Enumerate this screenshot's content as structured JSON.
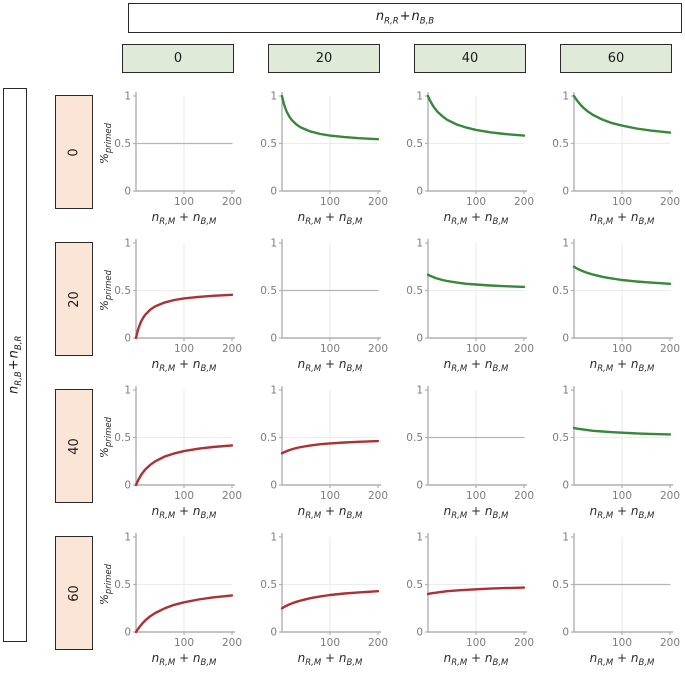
{
  "labels": {
    "col_header": {
      "b1": "n",
      "s1": "R,R",
      "op": "+",
      "b2": "n",
      "s2": "B,B"
    },
    "row_header": {
      "b1": "n",
      "s1": "R,B",
      "op": "+",
      "b2": "n",
      "s2": "B,R"
    },
    "x_axis": {
      "b1": "n",
      "s1": "R,M",
      "op": "+",
      "b2": "n",
      "s2": "B,M"
    },
    "y_axis": {
      "base": "%",
      "sub": "primed"
    }
  },
  "colors": {
    "green": "#37883a",
    "red": "#ab3234",
    "gray": "#b5b5b5",
    "axis": "#b0b0b0",
    "grid": "#ececec",
    "tick_text": "#7d7d7d",
    "label_text": "#2b2b2b",
    "col_box_fill": "#dfead9",
    "row_box_fill": "#fae5d6",
    "box_border": "#2a2a2a"
  },
  "chart_data": {
    "type": "line",
    "layout": "4x4 small multiples",
    "col_variable": "n_R,R + n_B,B",
    "row_variable": "n_R,B + n_B,R",
    "xlabel": "n_R,M + n_B,M",
    "ylabel": "%_primed",
    "col_values": [
      "0",
      "20",
      "40",
      "60"
    ],
    "row_values": [
      "0",
      "20",
      "40",
      "60"
    ],
    "xlim": [
      0,
      200
    ],
    "ylim": [
      0,
      1
    ],
    "x_ticks": [
      100,
      200
    ],
    "x_tick_labels": [
      "100",
      "200"
    ],
    "y_ticks": [
      0,
      0.5,
      1
    ],
    "y_tick_labels": [
      "0",
      "0.5",
      "1"
    ],
    "grid_x": [
      100
    ],
    "grid_y": [
      0.5
    ],
    "x": [
      0,
      2,
      4,
      7,
      10,
      15,
      20,
      30,
      40,
      60,
      80,
      100,
      130,
      160,
      200
    ],
    "cells": [
      {
        "row": 0,
        "col": 0,
        "row_value": 0,
        "col_value": 0,
        "color": "gray",
        "y": [
          0.5,
          0.5,
          0.5,
          0.5,
          0.5,
          0.5,
          0.5,
          0.5,
          0.5,
          0.5,
          0.5,
          0.5,
          0.5,
          0.5,
          0.5
        ]
      },
      {
        "row": 0,
        "col": 1,
        "row_value": 0,
        "col_value": 20,
        "color": "green",
        "y": [
          1.0,
          0.955,
          0.917,
          0.87,
          0.833,
          0.786,
          0.75,
          0.7,
          0.667,
          0.625,
          0.6,
          0.583,
          0.567,
          0.556,
          0.545
        ]
      },
      {
        "row": 0,
        "col": 2,
        "row_value": 0,
        "col_value": 40,
        "color": "green",
        "y": [
          1.0,
          0.976,
          0.955,
          0.926,
          0.9,
          0.864,
          0.833,
          0.786,
          0.75,
          0.7,
          0.667,
          0.643,
          0.618,
          0.6,
          0.583
        ]
      },
      {
        "row": 0,
        "col": 3,
        "row_value": 0,
        "col_value": 60,
        "color": "green",
        "y": [
          1.0,
          0.984,
          0.969,
          0.948,
          0.929,
          0.9,
          0.875,
          0.833,
          0.8,
          0.75,
          0.714,
          0.688,
          0.658,
          0.636,
          0.615
        ]
      },
      {
        "row": 1,
        "col": 0,
        "row_value": 20,
        "col_value": 0,
        "color": "red",
        "y": [
          0.0,
          0.045,
          0.083,
          0.13,
          0.167,
          0.214,
          0.25,
          0.3,
          0.333,
          0.375,
          0.4,
          0.417,
          0.433,
          0.444,
          0.455
        ]
      },
      {
        "row": 1,
        "col": 1,
        "row_value": 20,
        "col_value": 20,
        "color": "gray",
        "y": [
          0.5,
          0.5,
          0.5,
          0.5,
          0.5,
          0.5,
          0.5,
          0.5,
          0.5,
          0.5,
          0.5,
          0.5,
          0.5,
          0.5,
          0.5
        ]
      },
      {
        "row": 1,
        "col": 2,
        "row_value": 20,
        "col_value": 40,
        "color": "green",
        "y": [
          0.667,
          0.661,
          0.656,
          0.649,
          0.643,
          0.633,
          0.625,
          0.611,
          0.6,
          0.583,
          0.571,
          0.563,
          0.553,
          0.545,
          0.538
        ]
      },
      {
        "row": 1,
        "col": 3,
        "row_value": 20,
        "col_value": 60,
        "color": "green",
        "y": [
          0.75,
          0.744,
          0.738,
          0.73,
          0.722,
          0.711,
          0.7,
          0.682,
          0.667,
          0.643,
          0.625,
          0.611,
          0.595,
          0.583,
          0.571
        ]
      },
      {
        "row": 2,
        "col": 0,
        "row_value": 40,
        "col_value": 0,
        "color": "red",
        "y": [
          0.0,
          0.024,
          0.045,
          0.074,
          0.1,
          0.136,
          0.167,
          0.214,
          0.25,
          0.3,
          0.333,
          0.357,
          0.382,
          0.4,
          0.417
        ]
      },
      {
        "row": 2,
        "col": 1,
        "row_value": 40,
        "col_value": 20,
        "color": "red",
        "y": [
          0.333,
          0.339,
          0.344,
          0.351,
          0.357,
          0.367,
          0.375,
          0.389,
          0.4,
          0.417,
          0.429,
          0.438,
          0.447,
          0.455,
          0.462
        ]
      },
      {
        "row": 2,
        "col": 2,
        "row_value": 40,
        "col_value": 40,
        "color": "gray",
        "y": [
          0.5,
          0.5,
          0.5,
          0.5,
          0.5,
          0.5,
          0.5,
          0.5,
          0.5,
          0.5,
          0.5,
          0.5,
          0.5,
          0.5,
          0.5
        ]
      },
      {
        "row": 2,
        "col": 3,
        "row_value": 40,
        "col_value": 60,
        "color": "green",
        "y": [
          0.6,
          0.598,
          0.596,
          0.593,
          0.591,
          0.587,
          0.583,
          0.577,
          0.571,
          0.563,
          0.556,
          0.55,
          0.543,
          0.538,
          0.533
        ]
      },
      {
        "row": 3,
        "col": 0,
        "row_value": 60,
        "col_value": 0,
        "color": "red",
        "y": [
          0.0,
          0.016,
          0.031,
          0.052,
          0.071,
          0.1,
          0.125,
          0.167,
          0.2,
          0.25,
          0.286,
          0.313,
          0.342,
          0.364,
          0.385
        ]
      },
      {
        "row": 3,
        "col": 1,
        "row_value": 60,
        "col_value": 20,
        "color": "red",
        "y": [
          0.25,
          0.256,
          0.262,
          0.27,
          0.278,
          0.289,
          0.3,
          0.318,
          0.333,
          0.357,
          0.375,
          0.389,
          0.405,
          0.417,
          0.429
        ]
      },
      {
        "row": 3,
        "col": 2,
        "row_value": 60,
        "col_value": 40,
        "color": "red",
        "y": [
          0.4,
          0.402,
          0.404,
          0.407,
          0.409,
          0.413,
          0.417,
          0.423,
          0.429,
          0.438,
          0.444,
          0.45,
          0.457,
          0.462,
          0.467
        ]
      },
      {
        "row": 3,
        "col": 3,
        "row_value": 60,
        "col_value": 60,
        "color": "gray",
        "y": [
          0.5,
          0.5,
          0.5,
          0.5,
          0.5,
          0.5,
          0.5,
          0.5,
          0.5,
          0.5,
          0.5,
          0.5,
          0.5,
          0.5,
          0.5
        ]
      }
    ]
  }
}
